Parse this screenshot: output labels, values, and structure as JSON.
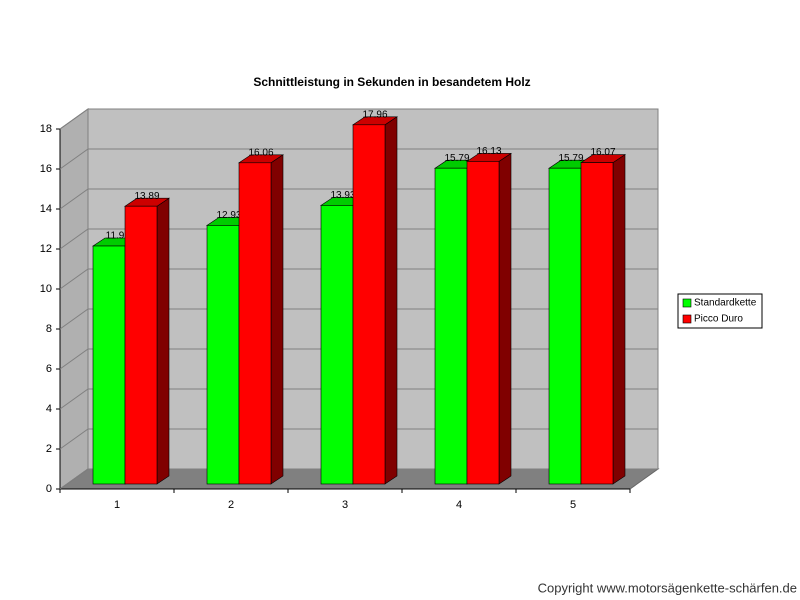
{
  "chart_data": {
    "type": "bar3d",
    "title": "Schnittleistung in Sekunden in besandetem Holz",
    "categories": [
      "1",
      "2",
      "3",
      "4",
      "5"
    ],
    "series": [
      {
        "name": "Standardkette",
        "color": "#00ff00",
        "values": [
          11.9,
          12.93,
          13.93,
          15.79,
          15.79
        ]
      },
      {
        "name": "Picco Duro",
        "color": "#ff0000",
        "values": [
          13.89,
          16.06,
          17.96,
          16.13,
          16.07
        ]
      }
    ],
    "ylim": [
      0,
      18
    ],
    "yticks": [
      0,
      2,
      4,
      6,
      8,
      10,
      12,
      14,
      16,
      18
    ],
    "grid": true,
    "legend": "right",
    "copyright": "Copyright www.motorsägenkette-schärfen.de"
  }
}
